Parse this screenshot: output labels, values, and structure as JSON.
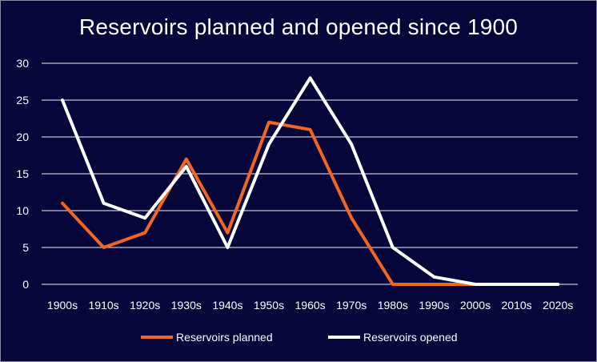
{
  "chart_data": {
    "type": "line",
    "title": "Reservoirs planned and opened since 1900",
    "xlabel": "",
    "ylabel": "",
    "categories": [
      "1900s",
      "1910s",
      "1920s",
      "1930s",
      "1940s",
      "1950s",
      "1960s",
      "1970s",
      "1980s",
      "1990s",
      "2000s",
      "2010s",
      "2020s"
    ],
    "ylim": [
      0,
      30
    ],
    "yticks": [
      0,
      5,
      10,
      15,
      20,
      25,
      30
    ],
    "grid": true,
    "legend_position": "bottom",
    "series": [
      {
        "name": "Reservoirs planned",
        "color": "#f26522",
        "values": [
          11,
          5,
          7,
          17,
          7,
          22,
          21,
          9,
          0,
          0,
          0,
          0,
          0
        ]
      },
      {
        "name": "Reservoirs opened",
        "color": "#ffffff",
        "values": [
          25,
          11,
          9,
          16,
          5,
          19,
          28,
          19,
          5,
          1,
          0,
          0,
          0
        ]
      }
    ],
    "colors": {
      "background": "#06063a",
      "text": "#ffffff",
      "grid": "#ffffff"
    }
  }
}
